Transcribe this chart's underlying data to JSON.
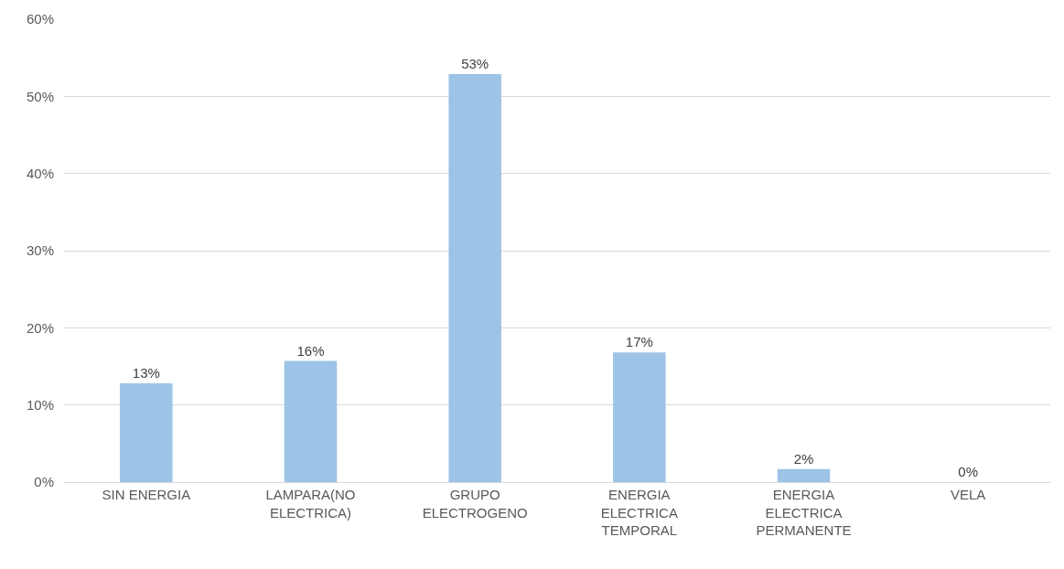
{
  "chart_data": {
    "type": "bar",
    "categories": [
      "SIN ENERGIA",
      "LAMPARA(NO ELECTRICA)",
      "GRUPO ELECTROGENO",
      "ENERGIA ELECTRICA TEMPORAL",
      "ENERGIA ELECTRICA PERMANENTE",
      "VELA"
    ],
    "values": [
      12.8,
      15.7,
      52.9,
      16.8,
      1.7,
      0
    ],
    "value_labels": [
      "13%",
      "16%",
      "53%",
      "17%",
      "2%",
      "0%"
    ],
    "color": "#9dc3e6",
    "ylim": [
      0,
      60
    ],
    "yticks": [
      {
        "value": 0,
        "label": "0%"
      },
      {
        "value": 10,
        "label": "10%"
      },
      {
        "value": 20,
        "label": "20%"
      },
      {
        "value": 30,
        "label": "30%"
      },
      {
        "value": 40,
        "label": "40%"
      },
      {
        "value": 50,
        "label": "50%"
      },
      {
        "value": 60,
        "label": "60%"
      }
    ],
    "grid": "y"
  }
}
